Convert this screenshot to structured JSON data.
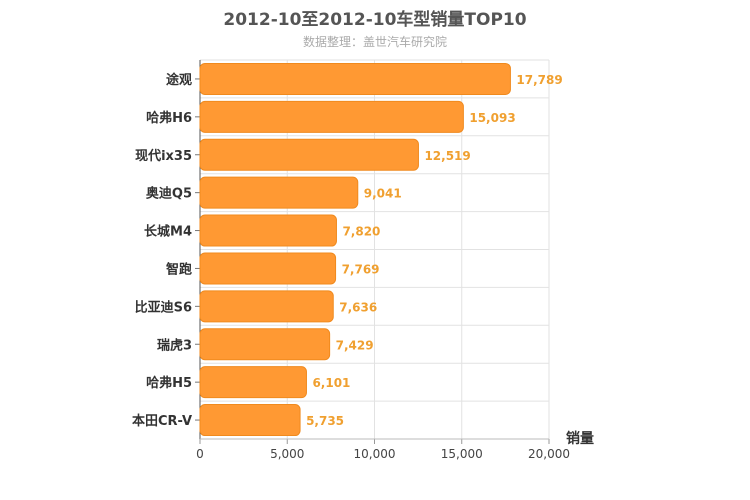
{
  "chart_data": {
    "type": "bar",
    "orientation": "horizontal",
    "title": "2012-10至2012-10车型销量TOP10",
    "subtitle": "数据整理：盖世汽车研究院",
    "categories": [
      "途观",
      "哈弗H6",
      "现代ix35",
      "奥迪Q5",
      "长城M4",
      "智跑",
      "比亚迪S6",
      "瑞虎3",
      "哈弗H5",
      "本田CR-V"
    ],
    "values": [
      17789,
      15093,
      12519,
      9041,
      7820,
      7769,
      7636,
      7429,
      6101,
      5735
    ],
    "value_labels": [
      "17,789",
      "15,093",
      "12,519",
      "9,041",
      "7,820",
      "7,769",
      "7,636",
      "7,429",
      "6,101",
      "5,735"
    ],
    "xlabel": "销量",
    "xlim": [
      0,
      20000
    ],
    "xticks": [
      0,
      5000,
      10000,
      15000,
      20000
    ],
    "xtick_labels": [
      "0",
      "5,000",
      "10,000",
      "15,000",
      "20,000"
    ],
    "grid": true,
    "bar_color": "#ff9933",
    "value_label_color": "#f0a030"
  }
}
